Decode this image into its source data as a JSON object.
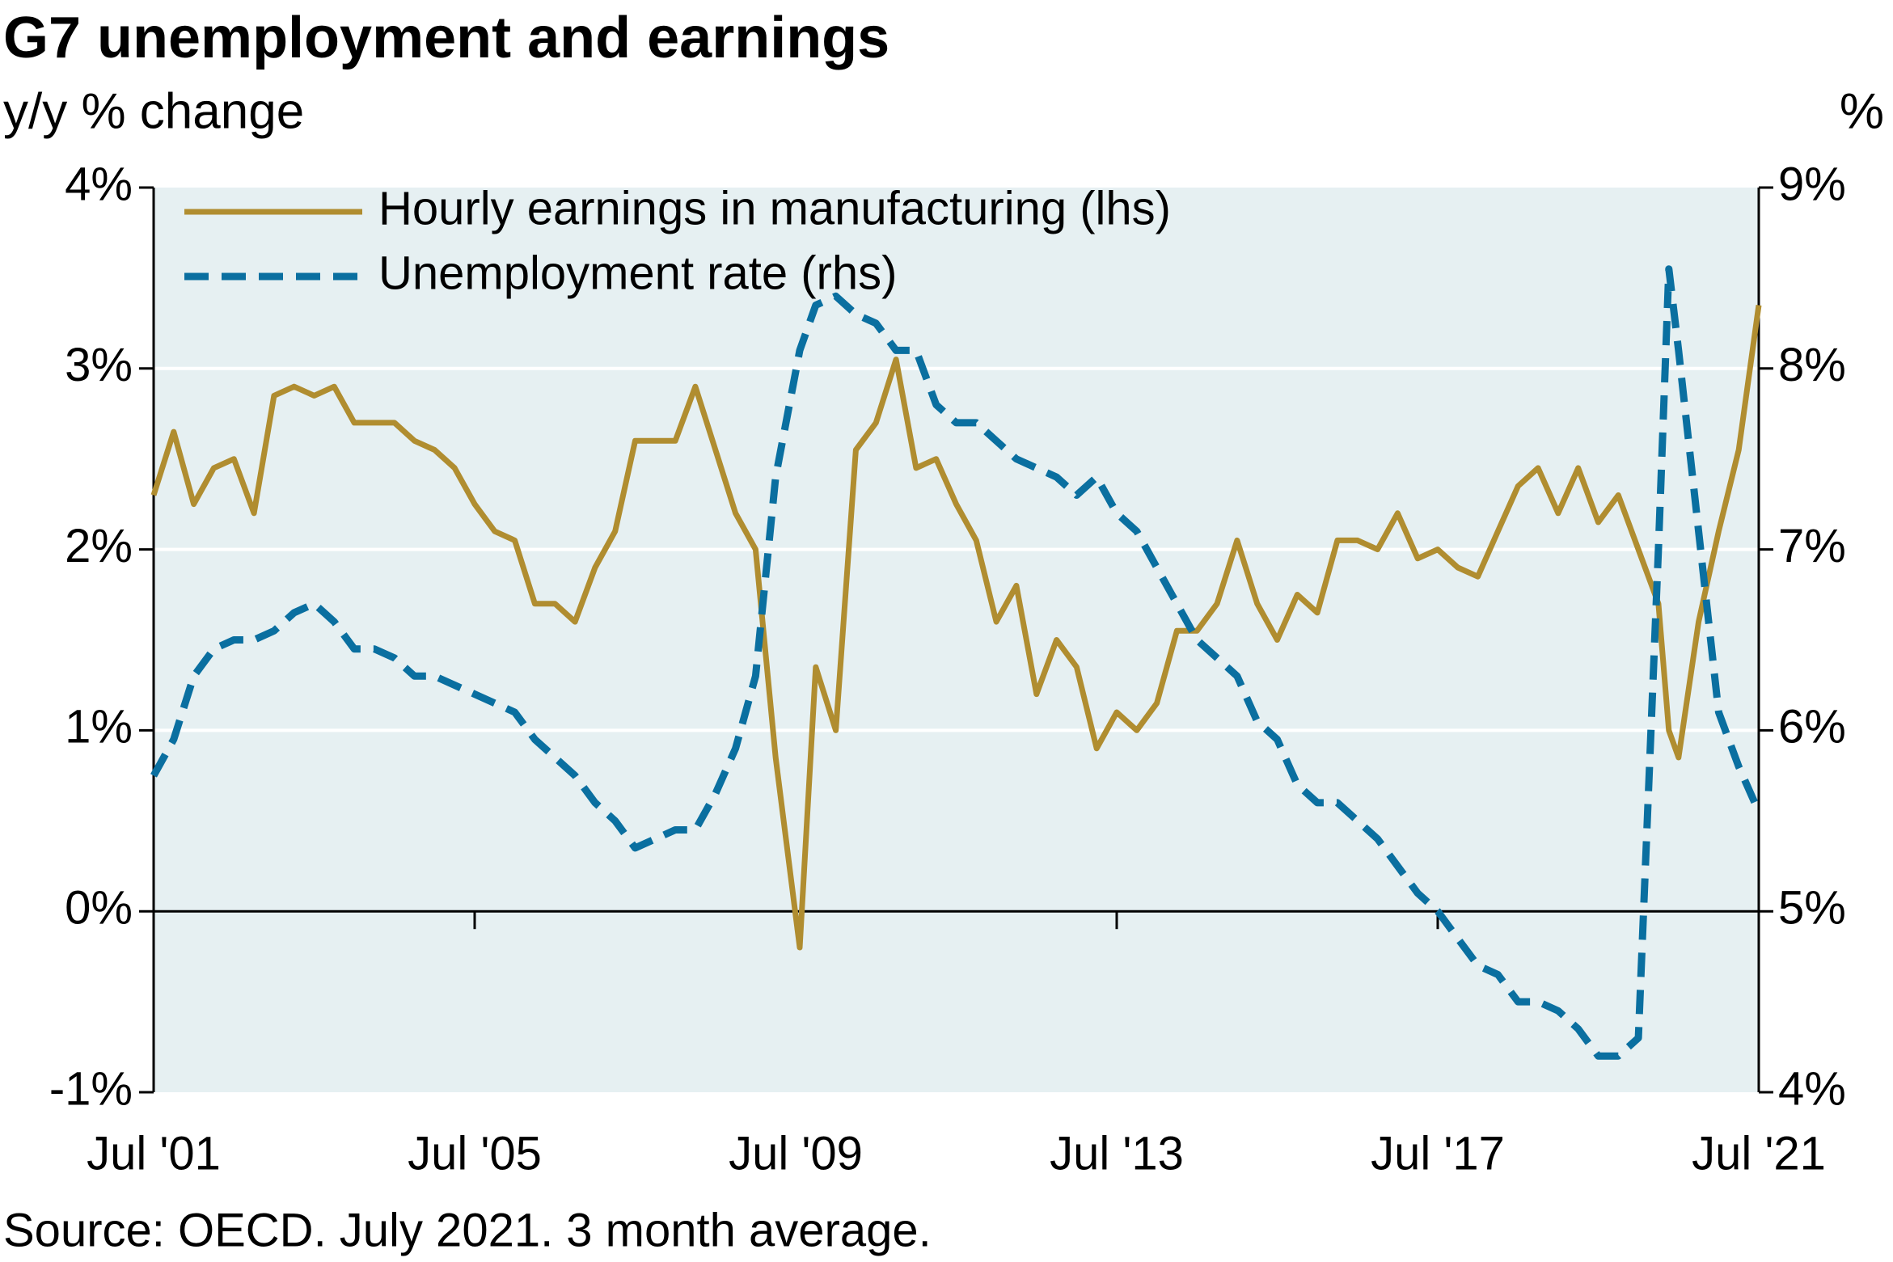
{
  "chart_data": {
    "type": "line",
    "title": "G7 unemployment and earnings",
    "subtitle": "y/y % change",
    "y2_label": "%",
    "source": "Source: OECD. July 2021. 3 month average.",
    "x": [
      2001.5,
      2001.75,
      2002.0,
      2002.25,
      2002.5,
      2002.75,
      2003.0,
      2003.25,
      2003.5,
      2003.75,
      2004.0,
      2004.25,
      2004.5,
      2004.75,
      2005.0,
      2005.25,
      2005.5,
      2005.75,
      2006.0,
      2006.25,
      2006.5,
      2006.75,
      2007.0,
      2007.25,
      2007.5,
      2007.75,
      2008.0,
      2008.25,
      2008.5,
      2008.75,
      2009.0,
      2009.25,
      2009.55,
      2009.75,
      2010.0,
      2010.25,
      2010.5,
      2010.75,
      2011.0,
      2011.25,
      2011.5,
      2011.75,
      2012.0,
      2012.25,
      2012.5,
      2012.75,
      2013.0,
      2013.25,
      2013.5,
      2013.75,
      2014.0,
      2014.25,
      2014.5,
      2014.75,
      2015.0,
      2015.25,
      2015.5,
      2015.75,
      2016.0,
      2016.25,
      2016.5,
      2016.75,
      2017.0,
      2017.25,
      2017.5,
      2017.75,
      2018.0,
      2018.25,
      2018.5,
      2018.75,
      2019.0,
      2019.25,
      2019.5,
      2019.75,
      2020.0,
      2020.25,
      2020.38,
      2020.5,
      2020.75,
      2021.0,
      2021.25,
      2021.5
    ],
    "series": [
      {
        "name": "Hourly earnings in manufacturing (lhs)",
        "color": "#b08d30",
        "line_style": "solid",
        "axis": "y",
        "values": [
          2.3,
          2.65,
          2.25,
          2.45,
          2.5,
          2.2,
          2.85,
          2.9,
          2.85,
          2.9,
          2.7,
          2.7,
          2.7,
          2.6,
          2.55,
          2.45,
          2.25,
          2.1,
          2.05,
          1.7,
          1.7,
          1.6,
          1.9,
          2.1,
          2.6,
          2.6,
          2.6,
          2.9,
          2.55,
          2.2,
          2.0,
          0.85,
          -0.2,
          1.35,
          1.0,
          2.55,
          2.7,
          3.05,
          2.45,
          2.5,
          2.25,
          2.05,
          1.6,
          1.8,
          1.2,
          1.5,
          1.35,
          0.9,
          1.1,
          1.0,
          1.15,
          1.55,
          1.55,
          1.7,
          2.05,
          1.7,
          1.5,
          1.75,
          1.65,
          2.05,
          2.05,
          2.0,
          2.2,
          1.95,
          2.0,
          1.9,
          1.85,
          2.1,
          2.35,
          2.45,
          2.2,
          2.45,
          2.15,
          2.3,
          2.0,
          1.7,
          1.0,
          0.85,
          1.6,
          2.1,
          2.55,
          3.35
        ]
      },
      {
        "name": "Unemployment rate (rhs)",
        "color": "#0a6fa0",
        "line_style": "dashed",
        "axis": "y2",
        "values": [
          5.75,
          5.95,
          6.3,
          6.45,
          6.5,
          6.5,
          6.55,
          6.65,
          6.7,
          6.6,
          6.45,
          6.45,
          6.4,
          6.3,
          6.3,
          6.25,
          6.2,
          6.15,
          6.1,
          5.95,
          5.85,
          5.75,
          5.6,
          5.5,
          5.35,
          5.4,
          5.45,
          5.45,
          5.65,
          5.9,
          6.3,
          7.4,
          8.1,
          8.35,
          8.4,
          8.3,
          8.25,
          8.1,
          8.1,
          7.8,
          7.7,
          7.7,
          7.6,
          7.5,
          7.45,
          7.4,
          7.3,
          7.4,
          7.2,
          7.1,
          6.9,
          6.7,
          6.5,
          6.4,
          6.3,
          6.05,
          5.95,
          5.7,
          5.6,
          5.6,
          5.5,
          5.4,
          5.25,
          5.1,
          5.0,
          4.85,
          4.7,
          4.65,
          4.5,
          4.5,
          4.45,
          4.35,
          4.2,
          4.2,
          4.3,
          7.0,
          8.55,
          8.1,
          7.1,
          6.1,
          5.8,
          5.55
        ]
      }
    ],
    "xlim": [
      2001.5,
      2021.5
    ],
    "xticks": [
      {
        "value": 2001.5,
        "label": "Jul '01"
      },
      {
        "value": 2005.5,
        "label": "Jul '05"
      },
      {
        "value": 2009.5,
        "label": "Jul '09"
      },
      {
        "value": 2013.5,
        "label": "Jul '13"
      },
      {
        "value": 2017.5,
        "label": "Jul '17"
      },
      {
        "value": 2021.5,
        "label": "Jul '21"
      }
    ],
    "ylim": [
      -1,
      4
    ],
    "yticks": [
      {
        "value": -1,
        "label": "-1%"
      },
      {
        "value": 0,
        "label": "0%"
      },
      {
        "value": 1,
        "label": "1%"
      },
      {
        "value": 2,
        "label": "2%"
      },
      {
        "value": 3,
        "label": "3%"
      },
      {
        "value": 4,
        "label": "4%"
      }
    ],
    "y2lim": [
      4,
      9
    ],
    "y2ticks": [
      {
        "value": 4,
        "label": "4%"
      },
      {
        "value": 5,
        "label": "5%"
      },
      {
        "value": 6,
        "label": "6%"
      },
      {
        "value": 7,
        "label": "7%"
      },
      {
        "value": 8,
        "label": "8%"
      },
      {
        "value": 9,
        "label": "9%"
      }
    ],
    "grid": true,
    "legend": "top-left"
  }
}
